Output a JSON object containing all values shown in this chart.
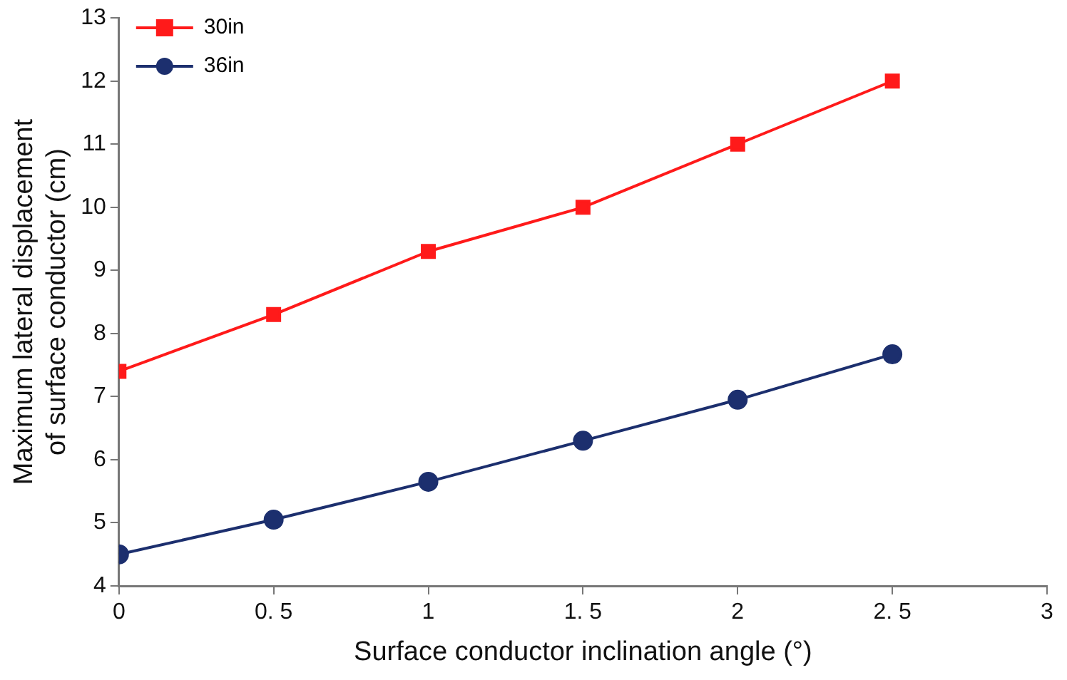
{
  "chart_data": {
    "type": "line",
    "xlabel": "Surface conductor inclination angle (°)",
    "ylabel": "Maximum lateral displacement of surface conductor (cm)",
    "x": [
      0,
      0.5,
      1,
      1.5,
      2,
      2.5
    ],
    "series": [
      {
        "name": "30in",
        "color": "#ff1a1a",
        "marker": "square",
        "values": [
          7.4,
          8.3,
          9.3,
          10,
          11,
          12
        ]
      },
      {
        "name": "36in",
        "color": "#1c2f6e",
        "marker": "circle",
        "values": [
          4.5,
          5.05,
          5.65,
          6.3,
          6.95,
          7.67
        ]
      }
    ],
    "xlim": [
      0,
      3
    ],
    "xticks": [
      0,
      {
        "value": 0.5,
        "label": "0. 5"
      },
      1,
      {
        "value": 1.5,
        "label": "1. 5"
      },
      2,
      {
        "value": 2.5,
        "label": "2. 5"
      },
      3
    ],
    "ylim": [
      4,
      13
    ],
    "yticks": [
      4,
      5,
      6,
      7,
      8,
      9,
      10,
      11,
      12,
      13
    ],
    "grid": false,
    "legend": "top left",
    "line_style": "solid"
  }
}
